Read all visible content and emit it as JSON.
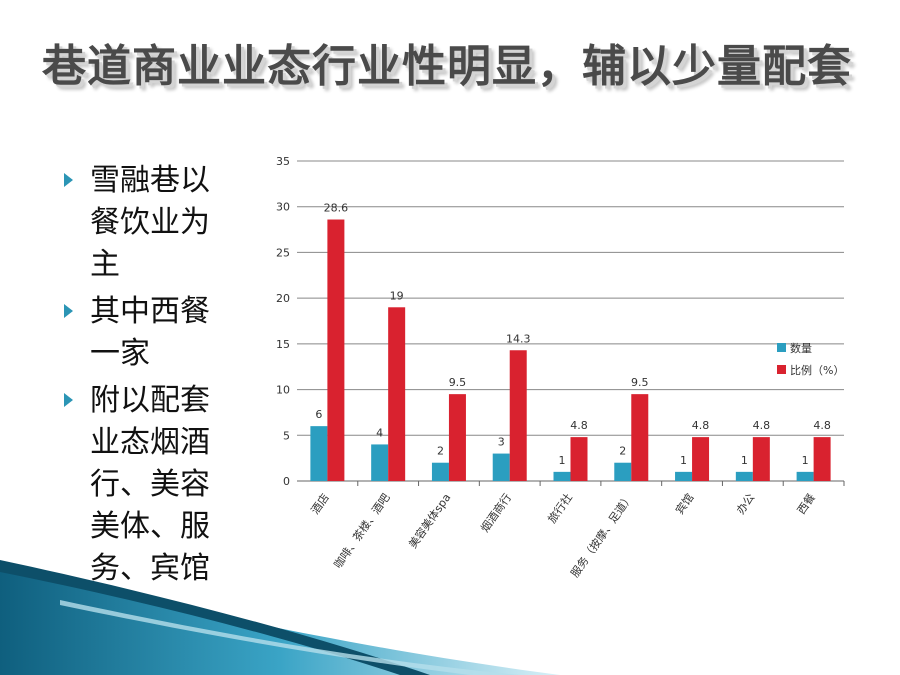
{
  "slide": {
    "title": "巷道商业业态行业性明显，辅以少量配套",
    "bullets": [
      "雪融巷以餐饮业为主",
      "其中西餐一家",
      "附以配套业态烟酒行、美容美体、服务、宾馆等"
    ],
    "bullet_icon": "triangle-arrow-icon",
    "accent_color": "#2b95b5"
  },
  "chart_data": {
    "type": "bar",
    "categories": [
      "酒店",
      "咖啡、茶楼、酒吧",
      "美容美体spa",
      "烟酒商行",
      "旅行社",
      "服务（按摩、足道）",
      "宾馆",
      "办公",
      "西餐"
    ],
    "series": [
      {
        "name": "数量",
        "values": [
          6,
          4,
          2,
          3,
          1,
          2,
          1,
          1,
          1
        ],
        "color": "#2b9ec0"
      },
      {
        "name": "比例（%）",
        "values": [
          28.6,
          19,
          9.5,
          14.3,
          4.8,
          9.5,
          4.8,
          4.8,
          4.8
        ],
        "color": "#d9222f"
      }
    ],
    "y_ticks": [
      0,
      5,
      10,
      15,
      20,
      25,
      30,
      35
    ],
    "ylim": [
      0,
      35
    ],
    "grid": true,
    "legend": "right",
    "data_labels": true
  }
}
